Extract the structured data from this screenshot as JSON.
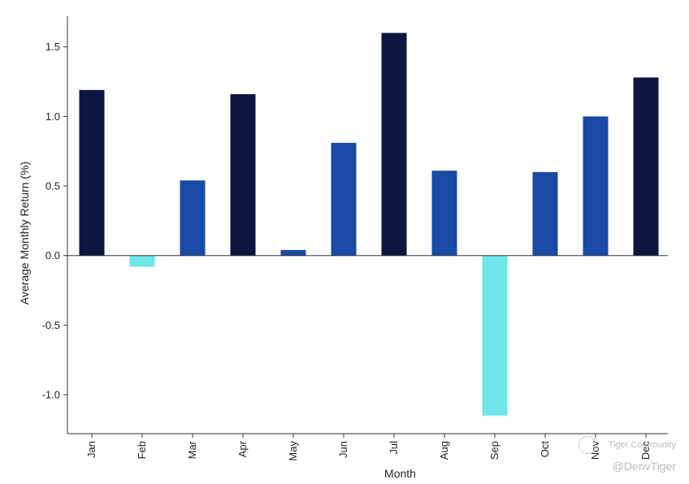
{
  "chart_data": {
    "type": "bar",
    "title": "",
    "xlabel": "Month",
    "ylabel": "Average Monthly Return (%)",
    "categories": [
      "Jan",
      "Feb",
      "Mar",
      "Apr",
      "May",
      "Jun",
      "Jul",
      "Aug",
      "Sep",
      "Oct",
      "Nov",
      "Dec"
    ],
    "values": [
      1.19,
      -0.08,
      0.54,
      1.16,
      0.04,
      0.81,
      1.6,
      0.61,
      -1.15,
      0.6,
      1.0,
      1.28
    ],
    "ylim": [
      -1.28,
      1.72
    ],
    "yticks": [
      -1.0,
      -0.5,
      0.0,
      0.5,
      1.0,
      1.5
    ],
    "ytick_labels": [
      "-1.0",
      "-0.5",
      "0.0",
      "0.5",
      "1.0",
      "1.5"
    ],
    "grid": false,
    "bar_colors": [
      "#0c1640",
      "#6ee5e6",
      "#1a49a6",
      "#0c1640",
      "#1a49a6",
      "#1a49a6",
      "#0c1640",
      "#1a49a6",
      "#6ee5e6",
      "#1a49a6",
      "#1a49a6",
      "#0c1640"
    ]
  },
  "watermark": {
    "line1": "Tiger Community",
    "line2": "@DerivTiger"
  }
}
